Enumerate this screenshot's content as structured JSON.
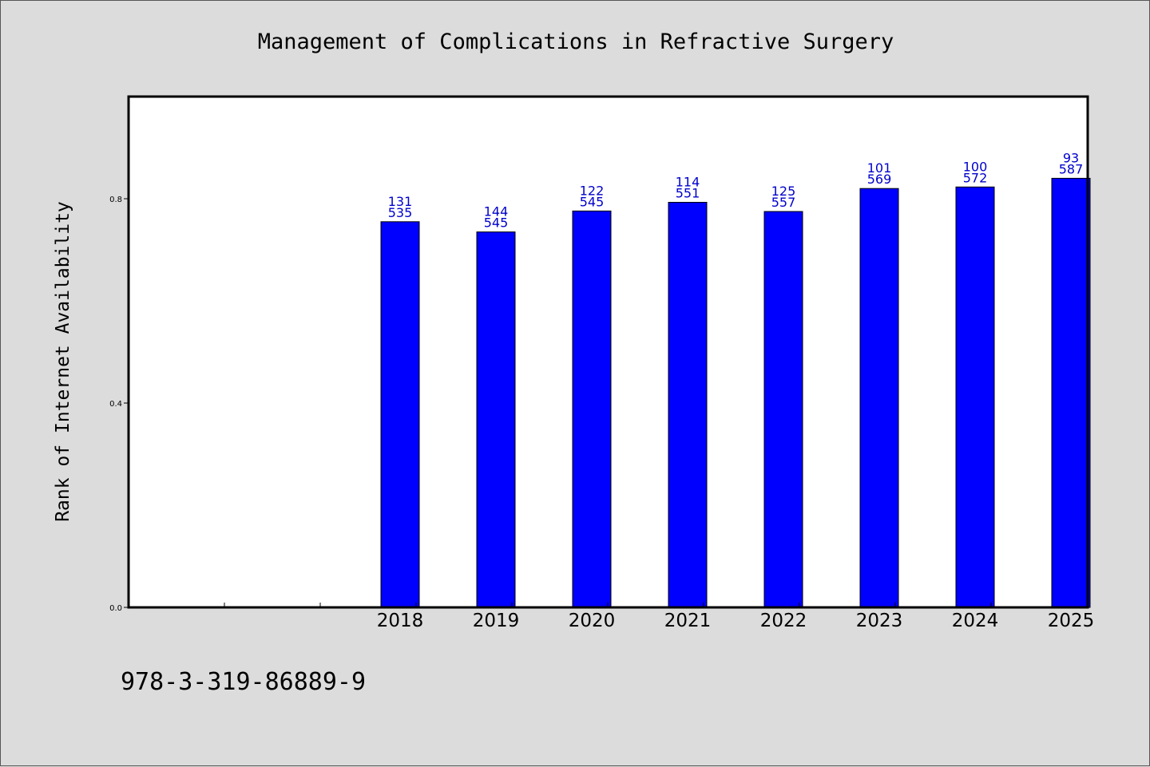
{
  "chart_data": {
    "type": "bar",
    "title": "Management of Complications in Refractive Surgery",
    "ylabel": "Rank of Internet Availability",
    "xlabel": "",
    "categories": [
      "",
      "",
      "2018",
      "2019",
      "2020",
      "2021",
      "2022",
      "2023",
      "2024",
      "2025"
    ],
    "values": [
      null,
      null,
      0.755,
      0.735,
      0.776,
      0.793,
      0.775,
      0.82,
      0.823,
      0.84
    ],
    "label_top": [
      "",
      "",
      "131",
      "144",
      "122",
      "114",
      "125",
      "101",
      "100",
      "93"
    ],
    "label_bottom": [
      "",
      "",
      "535",
      "545",
      "545",
      "551",
      "557",
      "569",
      "572",
      "587"
    ],
    "ylim": [
      0,
      1.0
    ],
    "yticks": [
      "0.0",
      "0.4",
      "0.8"
    ],
    "ytick_values": [
      0.0,
      0.4,
      0.8
    ],
    "grid": false,
    "bar_color": "#0000ff",
    "label_color": "#0000cc"
  },
  "footer": {
    "isbn": "978-3-319-86889-9"
  }
}
